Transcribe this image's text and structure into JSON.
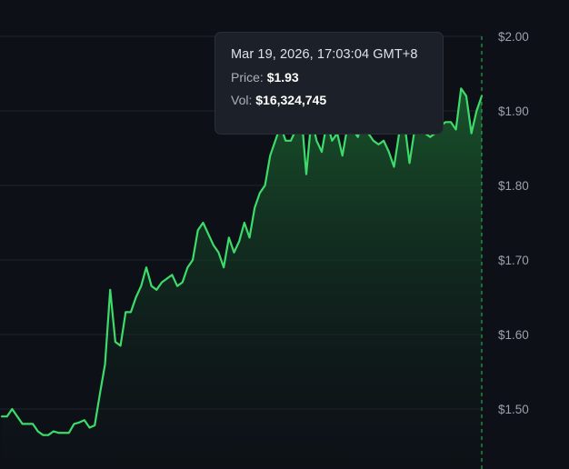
{
  "chart_data": {
    "type": "area",
    "title": "",
    "xlabel": "",
    "ylabel": "",
    "ylim": [
      1.44,
      2.02
    ],
    "y_ticks": [
      2.0,
      1.9,
      1.8,
      1.7,
      1.6,
      1.5
    ],
    "y_tick_labels": [
      "$2.00",
      "$1.90",
      "$1.80",
      "$1.70",
      "$1.60",
      "$1.50"
    ],
    "grid": true,
    "line_color": "#3ddc6a",
    "fill_color_top": "#1a5c2e",
    "fill_color_bottom": "#0d1117",
    "crosshair_color": "#2fbf55",
    "crosshair_index": 117,
    "series": [
      {
        "values": [
          1.49,
          1.49,
          1.5,
          1.49,
          1.48,
          1.48,
          1.48,
          1.47,
          1.465,
          1.465,
          1.47,
          1.468,
          1.468,
          1.468,
          1.48,
          1.482,
          1.485,
          1.475,
          1.478,
          1.52,
          1.56,
          1.66,
          1.59,
          1.585,
          1.63,
          1.63,
          1.65,
          1.665,
          1.69,
          1.665,
          1.66,
          1.67,
          1.675,
          1.68,
          1.665,
          1.67,
          1.69,
          1.7,
          1.74,
          1.75,
          1.735,
          1.72,
          1.71,
          1.69,
          1.73,
          1.71,
          1.725,
          1.75,
          1.73,
          1.77,
          1.79,
          1.8,
          1.84,
          1.86,
          1.88,
          1.86,
          1.86,
          1.875,
          1.9,
          1.815,
          1.89,
          1.86,
          1.845,
          1.885,
          1.86,
          1.87,
          1.84,
          1.88,
          1.875,
          1.865,
          1.89,
          1.87,
          1.86,
          1.855,
          1.86,
          1.845,
          1.825,
          1.87,
          1.885,
          1.83,
          1.875,
          1.88,
          1.87,
          1.865,
          1.87,
          1.88,
          1.885,
          1.885,
          1.875,
          1.93,
          1.92,
          1.87,
          1.9,
          1.92
        ]
      }
    ]
  },
  "tooltip": {
    "time": "Mar 19, 2026, 17:03:04 GMT+8",
    "price_label": "Price:",
    "price_value": "$1.93",
    "vol_label": "Vol:",
    "vol_value": "$16,324,745"
  }
}
